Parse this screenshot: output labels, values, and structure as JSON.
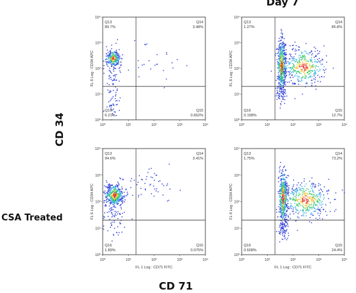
{
  "labels": {
    "day": "Day 7",
    "row_treatment": "CSA Treated",
    "y_marker": "CD 34",
    "x_marker": "CD 71"
  },
  "chart_data": [
    {
      "type": "scatter",
      "panel": "top-left",
      "xlabel": "",
      "ylabel": "FL 6 Log : CD34 APC",
      "xscale": "log",
      "yscale": "log",
      "xlim": [
        1,
        10000
      ],
      "ylim": [
        1,
        10000
      ],
      "xticks": [
        "10⁰",
        "10¹",
        "10²",
        "10³",
        "10⁴"
      ],
      "yticks": [
        "10⁰",
        "10¹",
        "10²",
        "10³",
        "10⁴"
      ],
      "gates": {
        "x": 20,
        "y": 20
      },
      "quadrants": [
        {
          "name": "Q13",
          "percent": "89.7%",
          "position": "top-left"
        },
        {
          "name": "Q14",
          "percent": "3.48%",
          "position": "top-right"
        },
        {
          "name": "Q16",
          "percent": "6.21%",
          "position": "bottom-left"
        },
        {
          "name": "Q15",
          "percent": "0.662%",
          "position": "bottom-right"
        }
      ],
      "populations": [
        {
          "x": 2.5,
          "y": 250,
          "sx": 0.13,
          "sy": 0.16,
          "n": 260
        },
        {
          "x": 2.5,
          "y": 50,
          "sx": 0.2,
          "sy": 0.5,
          "n": 60
        },
        {
          "x": 2.5,
          "y": 5,
          "sx": 0.15,
          "sy": 0.3,
          "n": 35
        },
        {
          "x": 80,
          "y": 150,
          "sx": 0.5,
          "sy": 0.4,
          "n": 25
        }
      ]
    },
    {
      "type": "scatter",
      "panel": "top-right",
      "xlabel": "",
      "ylabel": "FL 6 Log : CD34 APC",
      "xscale": "log",
      "yscale": "log",
      "xlim": [
        1,
        10000
      ],
      "ylim": [
        1,
        10000
      ],
      "xticks": [
        "10⁰",
        "10¹",
        "10²",
        "10³",
        "10⁴"
      ],
      "yticks": [
        "10⁰",
        "10¹",
        "10²",
        "10³",
        "10⁴"
      ],
      "gates": {
        "x": 20,
        "y": 20
      },
      "quadrants": [
        {
          "name": "Q13",
          "percent": "1.27%",
          "position": "top-left"
        },
        {
          "name": "Q14",
          "percent": "85.8%",
          "position": "top-right"
        },
        {
          "name": "Q16",
          "percent": "0.198%",
          "position": "bottom-left"
        },
        {
          "name": "Q15",
          "percent": "12.7%",
          "position": "bottom-right"
        }
      ],
      "populations": [
        {
          "x": 35,
          "y": 130,
          "sx": 0.08,
          "sy": 0.5,
          "n": 520
        },
        {
          "x": 250,
          "y": 120,
          "sx": 0.4,
          "sy": 0.35,
          "n": 380
        },
        {
          "x": 35,
          "y": 12,
          "sx": 0.1,
          "sy": 0.2,
          "n": 60
        }
      ]
    },
    {
      "type": "scatter",
      "panel": "bottom-left",
      "xlabel": "FL 1 Log : CD71 FITC",
      "ylabel": "FL 6 Log : CD34 APC",
      "xscale": "log",
      "yscale": "log",
      "xlim": [
        1,
        10000
      ],
      "ylim": [
        1,
        10000
      ],
      "xticks": [
        "10⁰",
        "10¹",
        "10²",
        "10³",
        "10⁴"
      ],
      "yticks": [
        "10⁰",
        "10¹",
        "10²",
        "10³",
        "10⁴"
      ],
      "gates": {
        "x": 20,
        "y": 20
      },
      "quadrants": [
        {
          "name": "Q13",
          "percent": "94.6%",
          "position": "top-left"
        },
        {
          "name": "Q14",
          "percent": "3.41%",
          "position": "top-right"
        },
        {
          "name": "Q16",
          "percent": "1.89%",
          "position": "bottom-left"
        },
        {
          "name": "Q15",
          "percent": "0.075%",
          "position": "bottom-right"
        }
      ],
      "populations": [
        {
          "x": 2.8,
          "y": 180,
          "sx": 0.17,
          "sy": 0.2,
          "n": 420
        },
        {
          "x": 3.0,
          "y": 40,
          "sx": 0.25,
          "sy": 0.45,
          "n": 80
        },
        {
          "x": 60,
          "y": 500,
          "sx": 0.45,
          "sy": 0.3,
          "n": 50
        }
      ]
    },
    {
      "type": "scatter",
      "panel": "bottom-right",
      "xlabel": "FL 1 Log : CD71 FITC",
      "ylabel": "FL 6 Log : CD34 APC",
      "xscale": "log",
      "yscale": "log",
      "xlim": [
        1,
        10000
      ],
      "ylim": [
        1,
        10000
      ],
      "xticks": [
        "10⁰",
        "10¹",
        "10²",
        "10³",
        "10⁴"
      ],
      "yticks": [
        "10⁰",
        "10¹",
        "10²",
        "10³",
        "10⁴"
      ],
      "gates": {
        "x": 20,
        "y": 20
      },
      "quadrants": [
        {
          "name": "Q13",
          "percent": "1.75%",
          "position": "top-left"
        },
        {
          "name": "Q14",
          "percent": "73.2%",
          "position": "top-right"
        },
        {
          "name": "Q16",
          "percent": "0.608%",
          "position": "bottom-left"
        },
        {
          "name": "Q15",
          "percent": "24.4%",
          "position": "bottom-right"
        }
      ],
      "populations": [
        {
          "x": 40,
          "y": 150,
          "sx": 0.08,
          "sy": 0.5,
          "n": 520
        },
        {
          "x": 300,
          "y": 120,
          "sx": 0.45,
          "sy": 0.35,
          "n": 420
        },
        {
          "x": 40,
          "y": 10,
          "sx": 0.1,
          "sy": 0.2,
          "n": 70
        }
      ]
    }
  ]
}
